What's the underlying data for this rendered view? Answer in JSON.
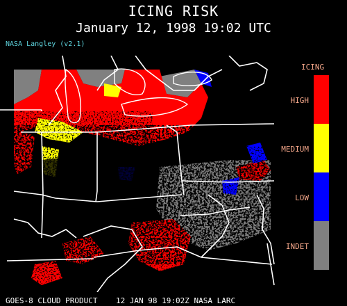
{
  "header": {
    "title": "ICING RISK",
    "subtitle": "January 12, 1998 19:02 UTC",
    "credit": "NASA Langley (v2.1)"
  },
  "legend": {
    "title": "ICING",
    "items": [
      {
        "label": "HIGH",
        "color": "#ff0000"
      },
      {
        "label": "MEDIUM",
        "color": "#ffff00"
      },
      {
        "label": "LOW",
        "color": "#0000ff"
      },
      {
        "label": "INDET",
        "color": "#808080"
      }
    ]
  },
  "footer": {
    "text": "GOES-8 CLOUD PRODUCT    12 JAN 98 19:02Z NASA LARC"
  },
  "colors": {
    "high": "#ff0000",
    "medium": "#ffff00",
    "low": "#0000ff",
    "indet": "#808080",
    "boundary": "#ffffff",
    "legend_text": "#f5a78a",
    "credit_text": "#5fd6e0"
  }
}
